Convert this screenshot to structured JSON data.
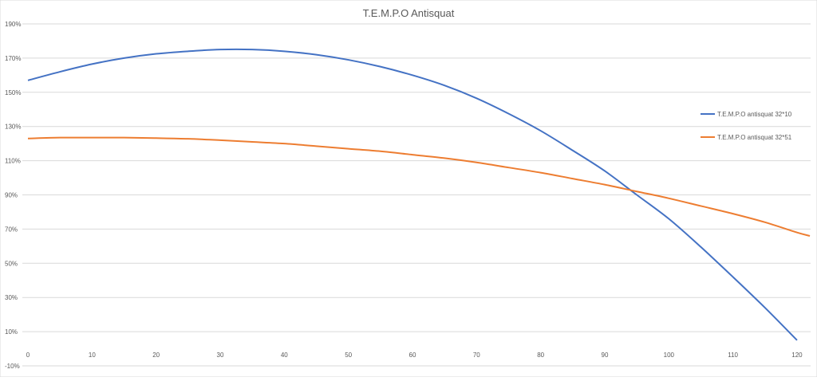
{
  "chart_data": {
    "type": "line",
    "title": "T.E.M.P.O Antisquat",
    "xlabel": "",
    "ylabel": "",
    "x_ticks": [
      0,
      10,
      20,
      30,
      40,
      50,
      60,
      70,
      80,
      90,
      100,
      110,
      120
    ],
    "y_ticks": [
      "190%",
      "170%",
      "150%",
      "130%",
      "110%",
      "90%",
      "70%",
      "50%",
      "30%",
      "10%",
      "-10%"
    ],
    "y_tick_values": [
      190,
      170,
      150,
      130,
      110,
      90,
      70,
      50,
      30,
      10,
      -10
    ],
    "xlim": [
      0,
      121
    ],
    "ylim": [
      -10,
      190
    ],
    "grid": "horizontal",
    "legend_position": "right",
    "series": [
      {
        "name": "T.E.M.P.O antisquat 32*10",
        "color": "#4472C4",
        "x": [
          0,
          5,
          10,
          15,
          20,
          25,
          30,
          35,
          40,
          45,
          50,
          55,
          60,
          65,
          70,
          75,
          80,
          85,
          90,
          95,
          100,
          105,
          110,
          115,
          120
        ],
        "values": [
          157,
          162,
          166.5,
          170,
          172.5,
          174,
          175,
          175,
          174,
          172,
          169,
          165,
          160,
          154,
          146.5,
          137.5,
          127.5,
          116,
          104,
          90,
          76,
          59.5,
          42,
          24,
          5
        ]
      },
      {
        "name": "T.E.M.P.O antisquat 32*51",
        "color": "#ED7D31",
        "x": [
          0,
          5,
          10,
          15,
          20,
          25,
          30,
          35,
          40,
          45,
          50,
          55,
          60,
          65,
          70,
          75,
          80,
          85,
          90,
          95,
          100,
          105,
          110,
          115,
          120,
          122
        ],
        "values": [
          123,
          123.5,
          123.5,
          123.5,
          123.2,
          122.8,
          122,
          121,
          120,
          118.5,
          117,
          115.5,
          113.5,
          111.5,
          109,
          106,
          103,
          99.5,
          96,
          92,
          88,
          83.5,
          79,
          74,
          68,
          66
        ]
      }
    ]
  }
}
